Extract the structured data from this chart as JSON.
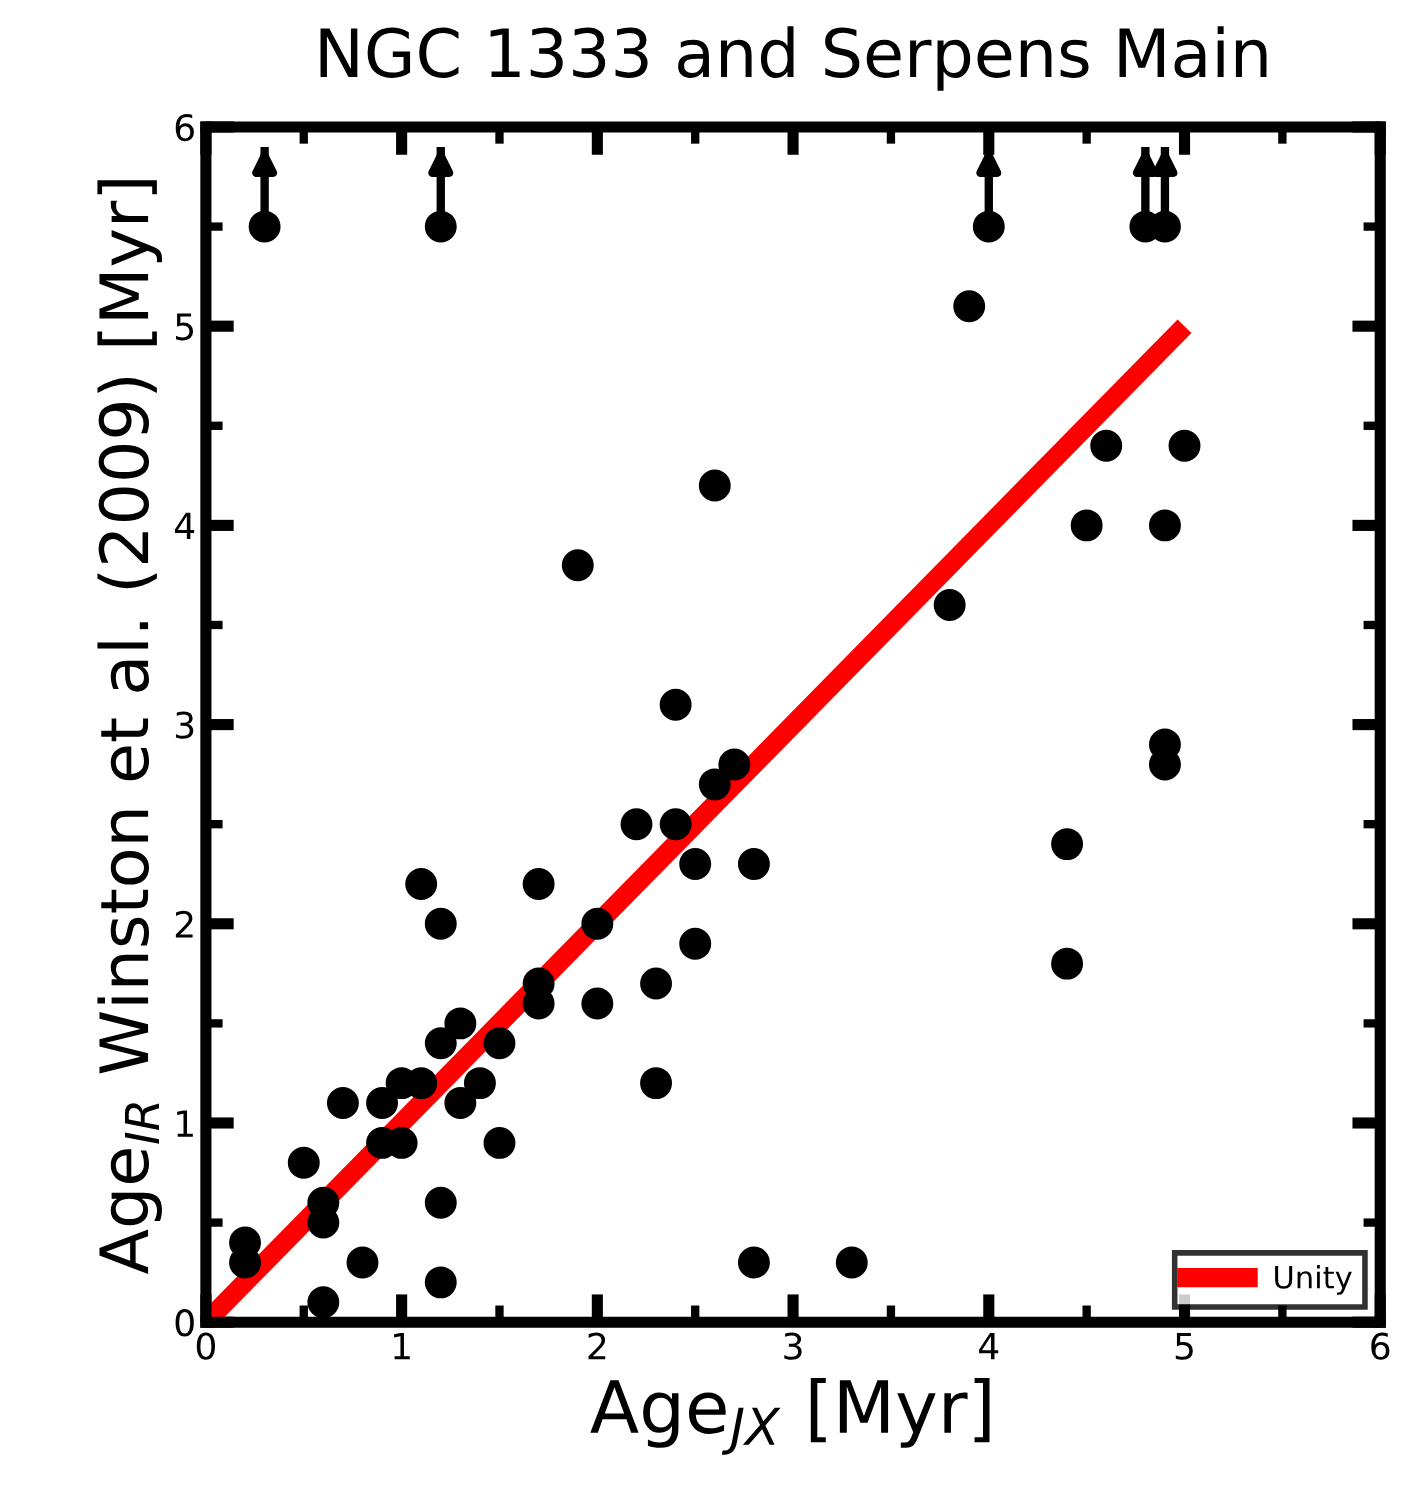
{
  "chart_data": {
    "type": "scatter",
    "title": "NGC 1333 and Serpens Main",
    "xlabel": "Age$_{JX}$ [Myr]",
    "ylabel": "Age$_{IR}$ Winston et al. (2009) [Myr]",
    "xlim": [
      0,
      6
    ],
    "ylim": [
      0,
      6
    ],
    "xticks": [
      0,
      1,
      2,
      3,
      4,
      5,
      6
    ],
    "yticks": [
      0,
      1,
      2,
      3,
      4,
      5,
      6
    ],
    "grid": false,
    "legend": "bottom right",
    "series": [
      {
        "type": "scatter",
        "marker": "circle",
        "color": "#000000",
        "x": [
          0.2,
          0.2,
          0.5,
          0.6,
          0.6,
          0.6,
          0.7,
          0.8,
          0.9,
          0.9,
          1.0,
          1.0,
          1.1,
          1.1,
          1.2,
          1.2,
          1.2,
          1.2,
          1.3,
          1.3,
          1.4,
          1.5,
          1.5,
          1.7,
          1.7,
          1.7,
          1.9,
          2.0,
          2.0,
          2.2,
          2.3,
          2.3,
          2.4,
          2.4,
          2.5,
          2.5,
          2.6,
          2.6,
          2.7,
          2.8,
          2.8,
          3.3,
          3.8,
          3.9,
          4.4,
          4.4,
          4.5,
          4.6,
          4.9,
          4.9,
          4.9,
          5.0
        ],
        "values": [
          0.4,
          0.3,
          0.8,
          0.6,
          0.5,
          0.1,
          1.1,
          0.3,
          0.9,
          1.1,
          1.2,
          0.9,
          2.2,
          1.2,
          2.0,
          1.4,
          0.6,
          0.2,
          1.5,
          1.1,
          1.2,
          1.4,
          0.9,
          2.2,
          1.7,
          1.6,
          3.8,
          2.0,
          1.6,
          2.5,
          1.7,
          1.2,
          3.1,
          2.5,
          2.3,
          1.9,
          4.2,
          2.7,
          2.8,
          2.3,
          0.3,
          0.3,
          3.6,
          5.1,
          2.4,
          1.8,
          4.0,
          4.4,
          4.0,
          2.9,
          2.8,
          4.4
        ]
      },
      {
        "type": "scatter",
        "marker": "circle",
        "color": "#000000",
        "x": [
          0.3,
          1.2,
          4.0,
          4.8,
          4.9
        ],
        "values": [
          5.5,
          5.5,
          5.5,
          5.5,
          5.5
        ],
        "errors": [
          [
            5.5,
            5.9
          ],
          [
            5.5,
            5.9
          ],
          [
            5.5,
            5.9
          ],
          [
            5.5,
            5.9
          ],
          [
            5.5,
            5.9
          ]
        ]
      },
      {
        "type": "line",
        "name": "Unity",
        "color": "#ff0000",
        "x": [
          0,
          5
        ],
        "values": [
          0,
          5
        ]
      }
    ]
  }
}
